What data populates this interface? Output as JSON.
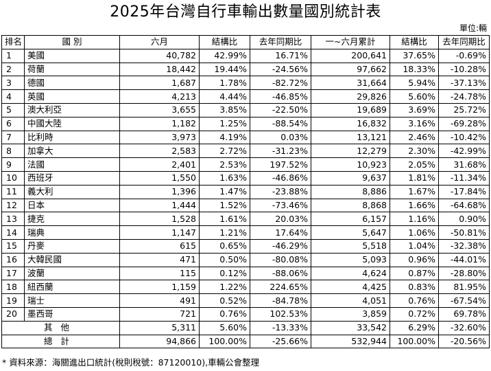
{
  "title": "2025年台灣自行車輸出數量國別統計表",
  "unit": "單位:輛",
  "headers": [
    "排名",
    "國 別",
    "六月",
    "結構比",
    "去年同期比",
    "一~六月累計",
    "結構比",
    "去年同期比"
  ],
  "rows": [
    {
      "rank": "1",
      "country": "美國",
      "june": "40,782",
      "share": "42.99%",
      "yoy": "16.71%",
      "ytd": "200,641",
      "ytd_share": "37.65%",
      "ytd_yoy": "-0.69%"
    },
    {
      "rank": "2",
      "country": "荷蘭",
      "june": "18,442",
      "share": "19.44%",
      "yoy": "-24.56%",
      "ytd": "97,662",
      "ytd_share": "18.33%",
      "ytd_yoy": "-10.28%"
    },
    {
      "rank": "3",
      "country": "德國",
      "june": "1,687",
      "share": "1.78%",
      "yoy": "-82.72%",
      "ytd": "31,664",
      "ytd_share": "5.94%",
      "ytd_yoy": "-37.13%"
    },
    {
      "rank": "4",
      "country": "英國",
      "june": "4,213",
      "share": "4.44%",
      "yoy": "-46.85%",
      "ytd": "29,826",
      "ytd_share": "5.60%",
      "ytd_yoy": "-24.78%"
    },
    {
      "rank": "5",
      "country": "澳大利亞",
      "june": "3,655",
      "share": "3.85%",
      "yoy": "-22.50%",
      "ytd": "19,689",
      "ytd_share": "3.69%",
      "ytd_yoy": "25.72%"
    },
    {
      "rank": "6",
      "country": "中國大陸",
      "june": "1,182",
      "share": "1.25%",
      "yoy": "-88.54%",
      "ytd": "16,832",
      "ytd_share": "3.16%",
      "ytd_yoy": "-69.28%"
    },
    {
      "rank": "7",
      "country": "比利時",
      "june": "3,973",
      "share": "4.19%",
      "yoy": "0.03%",
      "ytd": "13,121",
      "ytd_share": "2.46%",
      "ytd_yoy": "-10.42%"
    },
    {
      "rank": "8",
      "country": "加拿大",
      "june": "2,583",
      "share": "2.72%",
      "yoy": "-31.23%",
      "ytd": "12,279",
      "ytd_share": "2.30%",
      "ytd_yoy": "-42.99%"
    },
    {
      "rank": "9",
      "country": "法國",
      "june": "2,401",
      "share": "2.53%",
      "yoy": "197.52%",
      "ytd": "10,923",
      "ytd_share": "2.05%",
      "ytd_yoy": "31.68%"
    },
    {
      "rank": "10",
      "country": "西班牙",
      "june": "1,550",
      "share": "1.63%",
      "yoy": "-46.86%",
      "ytd": "9,637",
      "ytd_share": "1.81%",
      "ytd_yoy": "-11.34%"
    },
    {
      "rank": "11",
      "country": "義大利",
      "june": "1,396",
      "share": "1.47%",
      "yoy": "-23.88%",
      "ytd": "8,886",
      "ytd_share": "1.67%",
      "ytd_yoy": "-17.84%"
    },
    {
      "rank": "12",
      "country": "日本",
      "june": "1,444",
      "share": "1.52%",
      "yoy": "-73.46%",
      "ytd": "8,868",
      "ytd_share": "1.66%",
      "ytd_yoy": "-64.68%"
    },
    {
      "rank": "13",
      "country": "捷克",
      "june": "1,528",
      "share": "1.61%",
      "yoy": "20.03%",
      "ytd": "6,157",
      "ytd_share": "1.16%",
      "ytd_yoy": "0.90%"
    },
    {
      "rank": "14",
      "country": "瑞典",
      "june": "1,147",
      "share": "1.21%",
      "yoy": "17.64%",
      "ytd": "5,647",
      "ytd_share": "1.06%",
      "ytd_yoy": "-50.81%"
    },
    {
      "rank": "15",
      "country": "丹麥",
      "june": "615",
      "share": "0.65%",
      "yoy": "-46.29%",
      "ytd": "5,518",
      "ytd_share": "1.04%",
      "ytd_yoy": "-32.38%"
    },
    {
      "rank": "16",
      "country": "大韓民國",
      "june": "471",
      "share": "0.50%",
      "yoy": "-80.08%",
      "ytd": "5,093",
      "ytd_share": "0.96%",
      "ytd_yoy": "-44.01%"
    },
    {
      "rank": "17",
      "country": "波蘭",
      "june": "115",
      "share": "0.12%",
      "yoy": "-88.06%",
      "ytd": "4,624",
      "ytd_share": "0.87%",
      "ytd_yoy": "-28.80%"
    },
    {
      "rank": "18",
      "country": "紐西蘭",
      "june": "1,159",
      "share": "1.22%",
      "yoy": "224.65%",
      "ytd": "4,425",
      "ytd_share": "0.83%",
      "ytd_yoy": "81.95%"
    },
    {
      "rank": "19",
      "country": "瑞士",
      "june": "491",
      "share": "0.52%",
      "yoy": "-84.78%",
      "ytd": "4,051",
      "ytd_share": "0.76%",
      "ytd_yoy": "-67.54%"
    },
    {
      "rank": "20",
      "country": "墨西哥",
      "june": "721",
      "share": "0.76%",
      "yoy": "102.53%",
      "ytd": "3,859",
      "ytd_share": "0.72%",
      "ytd_yoy": "69.78%"
    }
  ],
  "others": {
    "label": "其他",
    "june": "5,311",
    "share": "5.60%",
    "yoy": "-13.33%",
    "ytd": "33,542",
    "ytd_share": "6.29%",
    "ytd_yoy": "-32.60%"
  },
  "total": {
    "label": "總計",
    "june": "94,866",
    "share": "100.00%",
    "yoy": "-25.66%",
    "ytd": "532,944",
    "ytd_share": "100.00%",
    "ytd_yoy": "-20.56%"
  },
  "footnote": "* 資料來源：海關進出口統計(稅則稅號：87120010),車輛公會整理"
}
